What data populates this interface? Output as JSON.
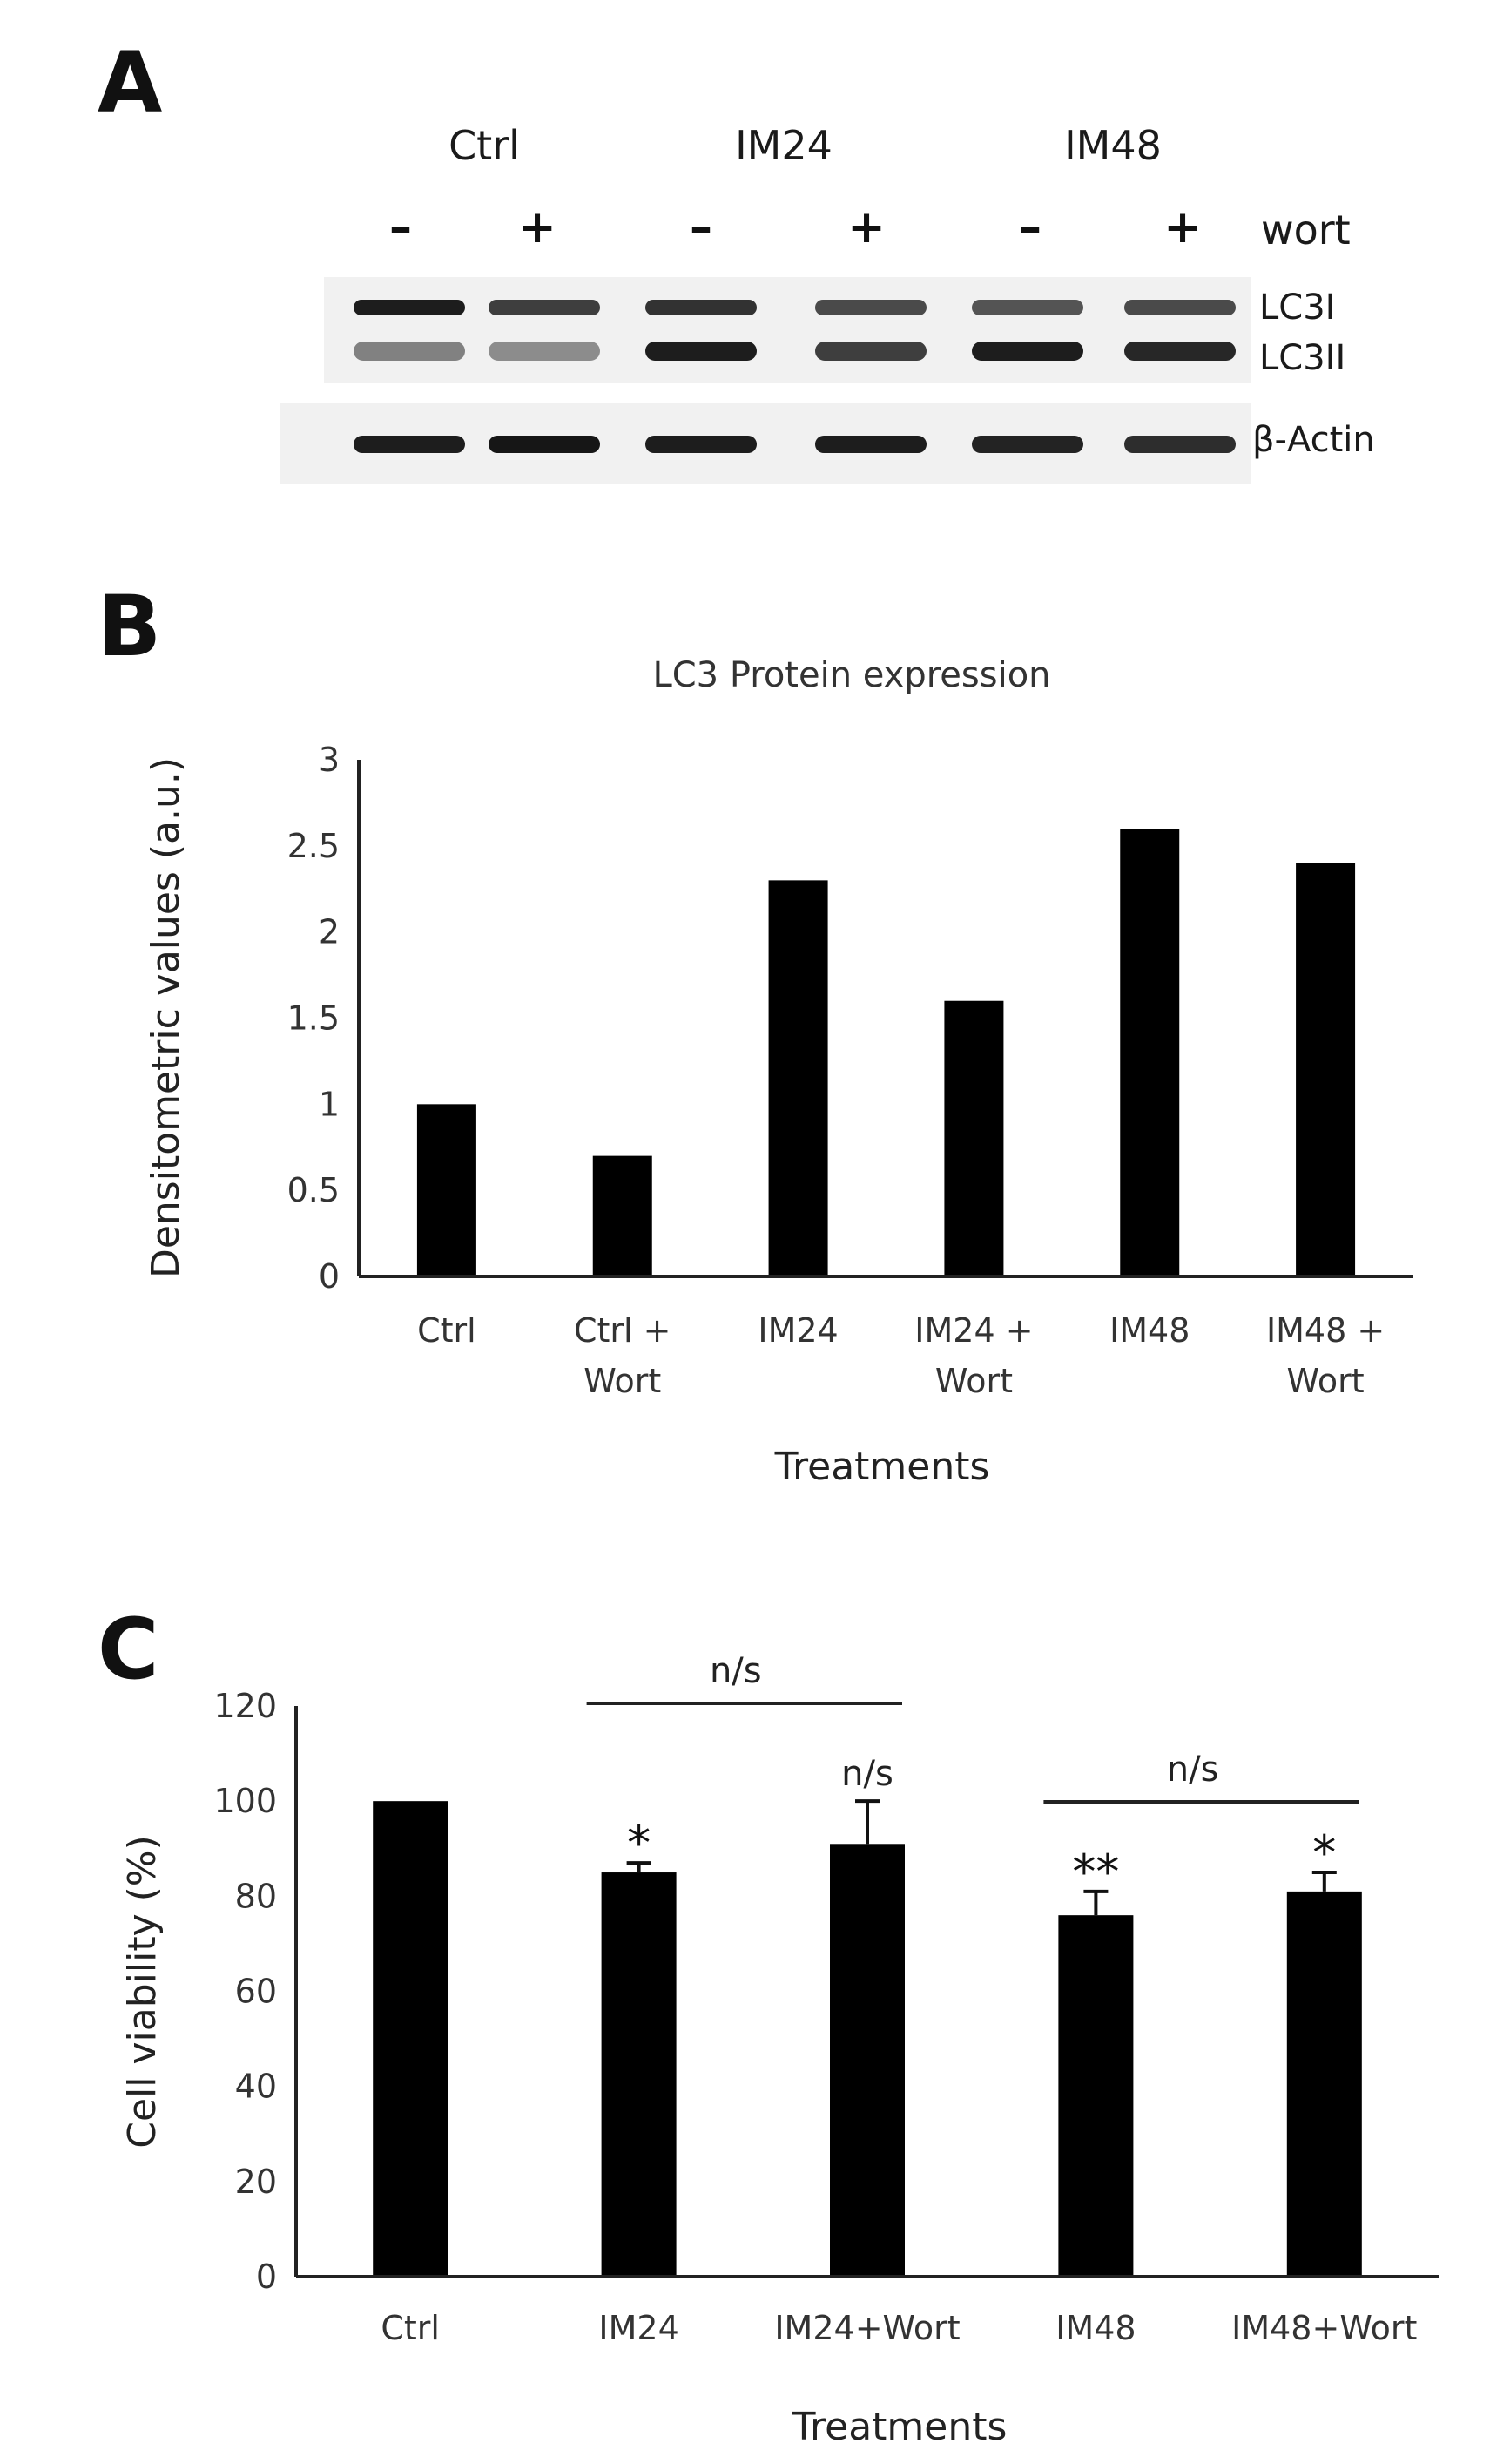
{
  "panels": {
    "a": {
      "letter": "A",
      "groups": [
        "Ctrl",
        "IM24",
        "IM48"
      ],
      "lane_signs": [
        "–",
        "+",
        "–",
        "+",
        "–",
        "+"
      ],
      "treatment_label": "wort",
      "band_labels": [
        "LC3I",
        "LC3II",
        "β-Actin"
      ],
      "lc3i_intensity": [
        0.95,
        0.8,
        0.85,
        0.75,
        0.7,
        0.75
      ],
      "lc3ii_intensity": [
        0.5,
        0.45,
        0.95,
        0.8,
        0.95,
        0.9
      ],
      "actin_intensity": [
        0.95,
        0.98,
        0.95,
        0.95,
        0.92,
        0.88
      ]
    },
    "b": {
      "letter": "B"
    },
    "c": {
      "letter": "C"
    }
  },
  "chart_data": [
    {
      "type": "bar",
      "title": "LC3 Protein expression",
      "categories": [
        [
          "Ctrl"
        ],
        [
          "Ctrl +",
          "Wort"
        ],
        [
          "IM24"
        ],
        [
          "IM24 +",
          "Wort"
        ],
        [
          "IM48"
        ],
        [
          "IM48 +",
          "Wort"
        ]
      ],
      "values": [
        1.0,
        0.7,
        2.3,
        1.6,
        2.6,
        2.4
      ],
      "xlabel": "Treatments",
      "ylabel": "Densitometric values (a.u.)",
      "ylim": [
        0,
        3
      ],
      "yticks": [
        "0",
        "0.5",
        "1",
        "1.5",
        "2",
        "2.5",
        "3"
      ],
      "bar_color": "#000000",
      "grid": false
    },
    {
      "type": "bar",
      "title": "",
      "categories": [
        "Ctrl",
        "IM24",
        "IM24+Wort",
        "IM48",
        "IM48+Wort"
      ],
      "values": [
        100,
        85,
        91,
        76,
        81
      ],
      "errors": [
        0,
        2,
        9,
        5,
        4
      ],
      "significance": [
        "",
        "*",
        "n/s",
        "**",
        "*"
      ],
      "comparisons": [
        {
          "from": 1,
          "to": 2,
          "label": "n/s"
        },
        {
          "from": 3,
          "to": 4,
          "label": "n/s"
        }
      ],
      "xlabel": "Treatments",
      "ylabel": "Cell viability (%)",
      "ylim": [
        0,
        120
      ],
      "yticks": [
        "0",
        "20",
        "40",
        "60",
        "80",
        "100",
        "120"
      ],
      "bar_color": "#000000",
      "grid": false
    }
  ]
}
